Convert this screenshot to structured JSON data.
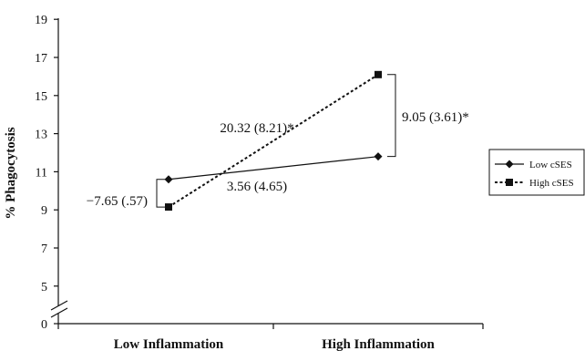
{
  "chart_data": {
    "type": "line",
    "ylabel": "% Phagocytosis",
    "categories": [
      "Low Inflammation",
      "High Inflammation"
    ],
    "y_ticks": [
      "0",
      "5",
      "7",
      "9",
      "11",
      "13",
      "15",
      "17",
      "19"
    ],
    "ylim": [
      5,
      19
    ],
    "axis_break": true,
    "grid": false,
    "legend_position": "right",
    "series": [
      {
        "name": "Low cSES",
        "values": [
          10.6,
          11.8
        ],
        "line_style": "solid",
        "marker": "diamond"
      },
      {
        "name": "High cSES",
        "values": [
          9.15,
          16.1
        ],
        "line_style": "dashed",
        "marker": "square"
      }
    ],
    "annotations": [
      {
        "text": "20.32 (8.21)*"
      },
      {
        "text": "3.56 (4.65)"
      },
      {
        "text": "−7.65 (.57)"
      },
      {
        "text": "9.05 (3.61)*"
      }
    ]
  }
}
